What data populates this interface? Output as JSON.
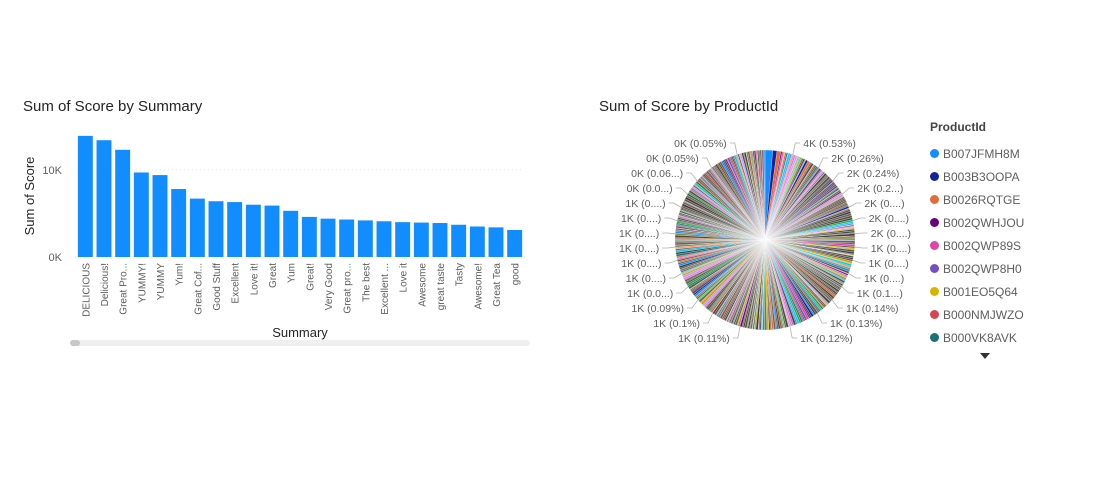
{
  "bar_chart": {
    "title": "Sum of Score by Summary"
  },
  "pie_chart": {
    "title": "Sum of Score by ProductId",
    "legend_title": "ProductId",
    "legend_items": [
      {
        "label": "B007JFMH8M",
        "color": "#118DFF"
      },
      {
        "label": "B003B3OOPA",
        "color": "#12239E"
      },
      {
        "label": "B0026RQTGE",
        "color": "#E66C37"
      },
      {
        "label": "B002QWHJOU",
        "color": "#6B007B"
      },
      {
        "label": "B002QWP89S",
        "color": "#E044A7"
      },
      {
        "label": "B002QWP8H0",
        "color": "#744EC2"
      },
      {
        "label": "B001EO5Q64",
        "color": "#D9B300"
      },
      {
        "label": "B000NMJWZO",
        "color": "#D64550"
      },
      {
        "label": "B000VK8AVK",
        "color": "#197278"
      }
    ],
    "slice_labels_left": [
      "0K (0.05%)",
      "0K (0.05%)",
      "0K (0.06...)",
      "0K (0.0...)",
      "1K (0....)",
      "1K (0....)",
      "1K (0....)",
      "1K (0....)",
      "1K (0....)",
      "1K (0....)",
      "1K (0.0...)",
      "1K (0.09%)",
      "1K (0.1%)",
      "1K (0.11%)"
    ],
    "slice_labels_right": [
      "4K (0.53%)",
      "2K (0.26%)",
      "2K (0.24%)",
      "2K (0.2...)",
      "2K (0....)",
      "2K (0....)",
      "2K (0....)",
      "1K (0....)",
      "1K (0....)",
      "1K (0....)",
      "1K (0.1...)",
      "1K (0.14%)",
      "1K (0.13%)",
      "1K (0.12%)"
    ]
  },
  "chart_data": [
    {
      "type": "bar",
      "title": "Sum of Score by Summary",
      "xlabel": "Summary",
      "ylabel": "Sum of Score",
      "categories": [
        "DELICIOUS",
        "Delicious!",
        "Great Pro...",
        "YUMMY!",
        "YUMMY",
        "Yum!",
        "Great Cof...",
        "Good Stuff",
        "Excellent",
        "Love it!",
        "Great",
        "Yum",
        "Great!",
        "Very Good",
        "Great pro...",
        "The best",
        "Excellent ...",
        "Love it",
        "Awesome",
        "great taste",
        "Tasty",
        "Awesome!",
        "Great Tea",
        "good"
      ],
      "values": [
        13900,
        13400,
        12300,
        9700,
        9400,
        7800,
        6700,
        6400,
        6300,
        6000,
        5900,
        5300,
        4600,
        4400,
        4300,
        4200,
        4100,
        4000,
        3950,
        3900,
        3700,
        3500,
        3400,
        3100
      ],
      "ylim": [
        0,
        14000
      ],
      "yticks": [
        "0K",
        "10K"
      ],
      "color": "#118DFF"
    },
    {
      "type": "pie",
      "title": "Sum of Score by ProductId",
      "labels": [
        "B007JFMH8M",
        "B003B3OOPA",
        "B0026RQTGE",
        "B002QWHJOU",
        "B002QWP89S",
        "B002QWP8H0",
        "B001EO5Q64",
        "B000NMJWZO",
        "B000VK8AVK"
      ],
      "values": [
        4000,
        2000,
        1800,
        1500,
        1400,
        1300,
        1200,
        1100,
        1000
      ],
      "percent_labels": [
        "4K (0.53%)",
        "2K (0.26%)",
        "2K (0.24%)"
      ],
      "legend": "right"
    }
  ]
}
